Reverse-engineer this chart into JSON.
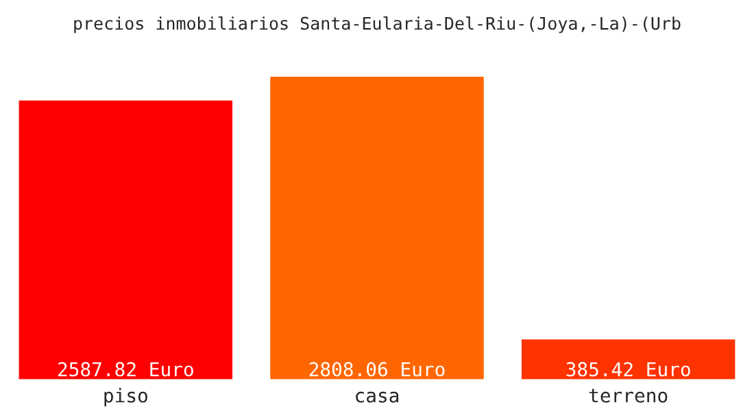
{
  "chart_data": {
    "type": "bar",
    "title": "precios inmobiliarios Santa-Eularia-Del-Riu-(Joya,-La)-(Urb",
    "categories": [
      "piso",
      "casa",
      "terreno"
    ],
    "values": [
      2587.82,
      2808.06,
      385.42
    ],
    "colors": [
      "#ff0000",
      "#ff6600",
      "#ff3300"
    ],
    "value_labels": [
      "2587.82 Euro",
      "2808.06 Euro",
      "385.42 Euro"
    ],
    "grid": false,
    "legend": false
  }
}
